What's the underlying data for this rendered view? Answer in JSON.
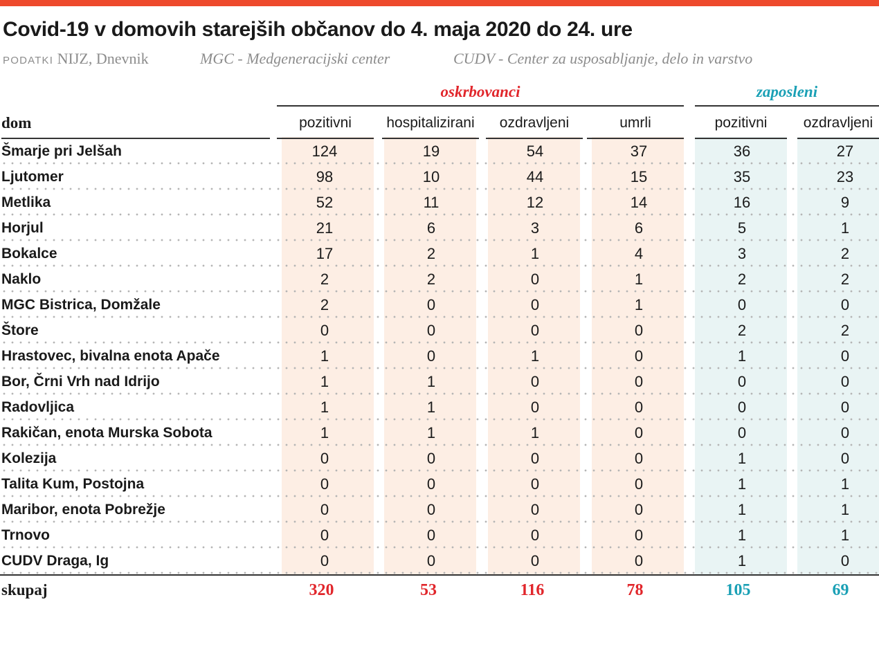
{
  "title": "Covid-19 v domovih starejših občanov do 4. maja 2020 do 24. ure",
  "source": {
    "label": "PODATKI",
    "value": "NIJZ, Dnevnik",
    "gloss_mgc": "MGC - Medgeneracijski center",
    "gloss_cudv": "CUDV - Center za usposabljanje, delo in varstvo"
  },
  "colors": {
    "residents": "#e1262b",
    "staff": "#1aa0b5",
    "residents_bg": "#fdeee4",
    "staff_bg": "#e9f4f4",
    "top_bar": "#ee4a2c"
  },
  "groups": {
    "residents": "oskrbovanci",
    "staff": "zaposleni"
  },
  "columns": {
    "dom": "dom",
    "res_positive": "pozitivni",
    "res_hospitalized": "hospitalizirani",
    "res_recovered": "ozdravljeni",
    "res_died": "umrli",
    "staff_positive": "pozitivni",
    "staff_recovered": "ozdravljeni"
  },
  "rows": [
    {
      "dom": "Šmarje pri Jelšah",
      "v": [
        "124",
        "19",
        "54",
        "37",
        "36",
        "27"
      ]
    },
    {
      "dom": "Ljutomer",
      "v": [
        "98",
        "10",
        "44",
        "15",
        "35",
        "23"
      ]
    },
    {
      "dom": "Metlika",
      "v": [
        "52",
        "11",
        "12",
        "14",
        "16",
        "9"
      ]
    },
    {
      "dom": "Horjul",
      "v": [
        "21",
        "6",
        "3",
        "6",
        "5",
        "1"
      ]
    },
    {
      "dom": "Bokalce",
      "v": [
        "17",
        "2",
        "1",
        "4",
        "3",
        "2"
      ]
    },
    {
      "dom": "Naklo",
      "v": [
        "2",
        "2",
        "0",
        "1",
        "2",
        "2"
      ]
    },
    {
      "dom": "MGC Bistrica, Domžale",
      "v": [
        "2",
        "0",
        "0",
        "1",
        "0",
        "0"
      ]
    },
    {
      "dom": "Štore",
      "v": [
        "0",
        "0",
        "0",
        "0",
        "2",
        "2"
      ]
    },
    {
      "dom": "Hrastovec, bivalna enota Apače",
      "v": [
        "1",
        "0",
        "1",
        "0",
        "1",
        "0"
      ]
    },
    {
      "dom": "Bor, Črni Vrh nad Idrijo",
      "v": [
        "1",
        "1",
        "0",
        "0",
        "0",
        "0"
      ]
    },
    {
      "dom": "Radovljica",
      "v": [
        "1",
        "1",
        "0",
        "0",
        "0",
        "0"
      ]
    },
    {
      "dom": "Rakičan, enota Murska Sobota",
      "v": [
        "1",
        "1",
        "1",
        "0",
        "0",
        "0"
      ]
    },
    {
      "dom": "Kolezija",
      "v": [
        "0",
        "0",
        "0",
        "0",
        "1",
        "0"
      ]
    },
    {
      "dom": "Talita Kum, Postojna",
      "v": [
        "0",
        "0",
        "0",
        "0",
        "1",
        "1"
      ]
    },
    {
      "dom": "Maribor, enota Pobrežje",
      "v": [
        "0",
        "0",
        "0",
        "0",
        "1",
        "1"
      ]
    },
    {
      "dom": "Trnovo",
      "v": [
        "0",
        "0",
        "0",
        "0",
        "1",
        "1"
      ]
    },
    {
      "dom": "CUDV Draga, Ig",
      "v": [
        "0",
        "0",
        "0",
        "0",
        "1",
        "0"
      ]
    }
  ],
  "totals": {
    "label": "skupaj",
    "v": [
      "320",
      "53",
      "116",
      "78",
      "105",
      "69"
    ]
  }
}
